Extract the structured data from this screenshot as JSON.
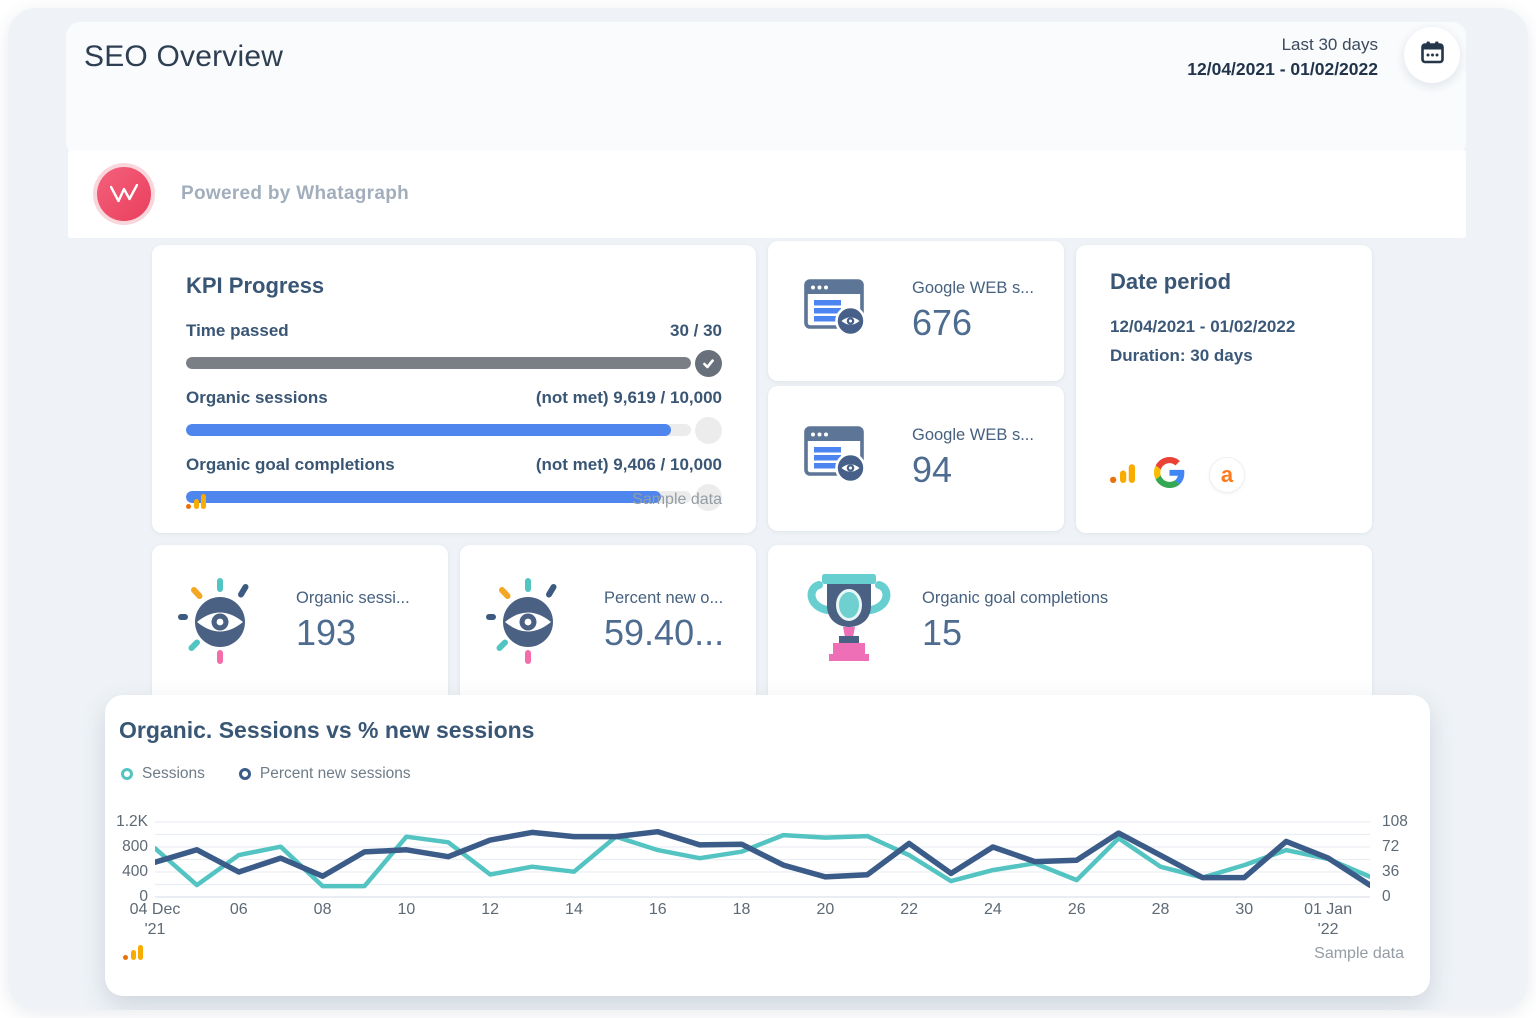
{
  "header": {
    "title": "SEO Overview",
    "date_range_label": "Last 30 days",
    "date_range": "12/04/2021 - 01/02/2022"
  },
  "branding": {
    "powered_by": "Powered by Whatagraph"
  },
  "kpi_progress": {
    "title": "KPI Progress",
    "rows": [
      {
        "label": "Time passed",
        "value": "30 / 30",
        "percent": 100,
        "met": true
      },
      {
        "label": "Organic sessions",
        "value": "(not met) 9,619 / 10,000",
        "percent": 96,
        "met": false
      },
      {
        "label": "Organic goal completions",
        "value": "(not met) 9,406 / 10,000",
        "percent": 94,
        "met": false
      }
    ],
    "sample_note": "Sample data"
  },
  "stat_cards": [
    {
      "icon": "web-sessions-icon",
      "label": "Google WEB s...",
      "value": "676"
    },
    {
      "icon": "web-sessions-icon",
      "label": "Google WEB s...",
      "value": "94"
    }
  ],
  "date_period": {
    "title": "Date period",
    "range": "12/04/2021 - 01/02/2022",
    "duration": "Duration: 30 days",
    "source_icons": [
      "google-analytics-icon",
      "google-icon",
      "ahrefs-icon"
    ],
    "ahrefs_letter": "a"
  },
  "metric_cards": [
    {
      "icon": "eye-sparkle-icon",
      "label": "Organic sessi...",
      "value": "193"
    },
    {
      "icon": "eye-sparkle-icon",
      "label": "Percent new o...",
      "value": "59.40..."
    },
    {
      "icon": "trophy-icon",
      "label": "Organic goal completions",
      "value": "15"
    }
  ],
  "chart": {
    "title": "Organic. Sessions vs % new sessions",
    "sample_note": "Sample data"
  },
  "chart_data": {
    "type": "line",
    "title": "Organic. Sessions vs % new sessions",
    "x_start": "12/04/2021",
    "x_end": "01/02/2022",
    "points": 30,
    "grid": true,
    "legend_position": "top-left",
    "series": [
      {
        "name": "Sessions",
        "axis": "left",
        "color": "#53c4c1",
        "width": 4.5,
        "values": [
          780,
          190,
          670,
          805,
          175,
          175,
          965,
          875,
          360,
          485,
          405,
          965,
          750,
          620,
          725,
          990,
          950,
          975,
          670,
          255,
          430,
          540,
          270,
          940,
          485,
          310,
          510,
          750,
          610,
          325
        ]
      },
      {
        "name": "Percent new sessions",
        "axis": "right",
        "color": "#3b5b88",
        "width": 5.5,
        "values": [
          50,
          68,
          36,
          56,
          30,
          65,
          68,
          58,
          82,
          93,
          87,
          87,
          94,
          75,
          76,
          46,
          29,
          32,
          77,
          34,
          72,
          51,
          53,
          92,
          60,
          28,
          28,
          80,
          56,
          17
        ]
      }
    ],
    "left_axis": {
      "min": 0,
      "max": 1200,
      "tick_values": [
        0,
        400,
        800,
        1200
      ],
      "ticks": [
        "0",
        "400",
        "800",
        "1.2K"
      ]
    },
    "right_axis": {
      "min": 0,
      "max": 108,
      "tick_values": [
        0,
        36,
        72,
        108
      ],
      "ticks": [
        "0",
        "36",
        "72",
        "108"
      ]
    },
    "gridline_step_left": 200,
    "x_ticks": [
      {
        "i": 0,
        "l": "04 Dec",
        "s": "'21"
      },
      {
        "i": 2,
        "l": "06"
      },
      {
        "i": 4,
        "l": "08"
      },
      {
        "i": 6,
        "l": "10"
      },
      {
        "i": 8,
        "l": "12"
      },
      {
        "i": 10,
        "l": "14"
      },
      {
        "i": 12,
        "l": "16"
      },
      {
        "i": 14,
        "l": "18"
      },
      {
        "i": 16,
        "l": "20"
      },
      {
        "i": 18,
        "l": "22"
      },
      {
        "i": 20,
        "l": "24"
      },
      {
        "i": 22,
        "l": "26"
      },
      {
        "i": 24,
        "l": "28"
      },
      {
        "i": 26,
        "l": "30"
      },
      {
        "i": 28,
        "l": "01 Jan",
        "s": "'22"
      }
    ]
  }
}
